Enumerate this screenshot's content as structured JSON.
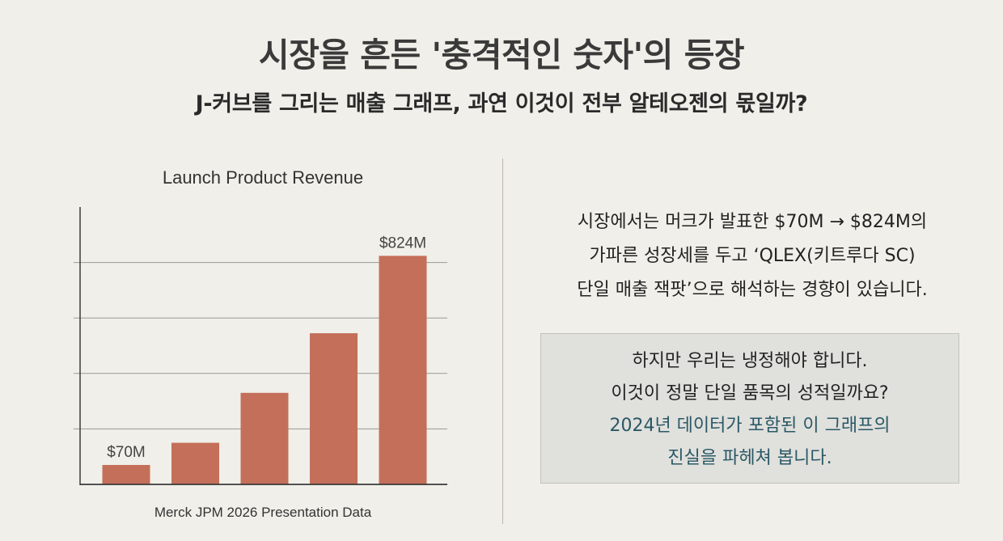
{
  "header": {
    "title": "시장을 흔든 '충격적인 숫자'의 등장",
    "subtitle": "J-커브를 그리는 매출 그래프, 과연 이것이 전부 알테오젠의 몫일까?"
  },
  "chart_data": {
    "type": "bar",
    "title": "Launch Product Revenue",
    "source": "Merck JPM 2026 Presentation Data",
    "values": [
      70,
      150,
      330,
      545,
      824
    ],
    "value_labels": [
      "$70M",
      "",
      "",
      "",
      "$824M"
    ],
    "ylim": [
      0,
      1000
    ],
    "grid": true,
    "bar_color": "#c46f59"
  },
  "description": {
    "lines": [
      "시장에서는 머크가 발표한 $70M → $824M의",
      "가파른 성장세를 두고 ‘QLEX(키트루다 SC)",
      "단일 매출 잭팟’으로 해석하는 경향이 있습니다."
    ]
  },
  "callout": {
    "lines": [
      "하지만 우리는 냉정해야 합니다.",
      "이것이 정말 단일 품목의 성적일까요?"
    ],
    "highlight_lines": [
      "2024년 데이터가 포함된 이 그래프의",
      "진실을 파헤쳐 봅니다."
    ],
    "highlight_color": "#2a5866"
  }
}
